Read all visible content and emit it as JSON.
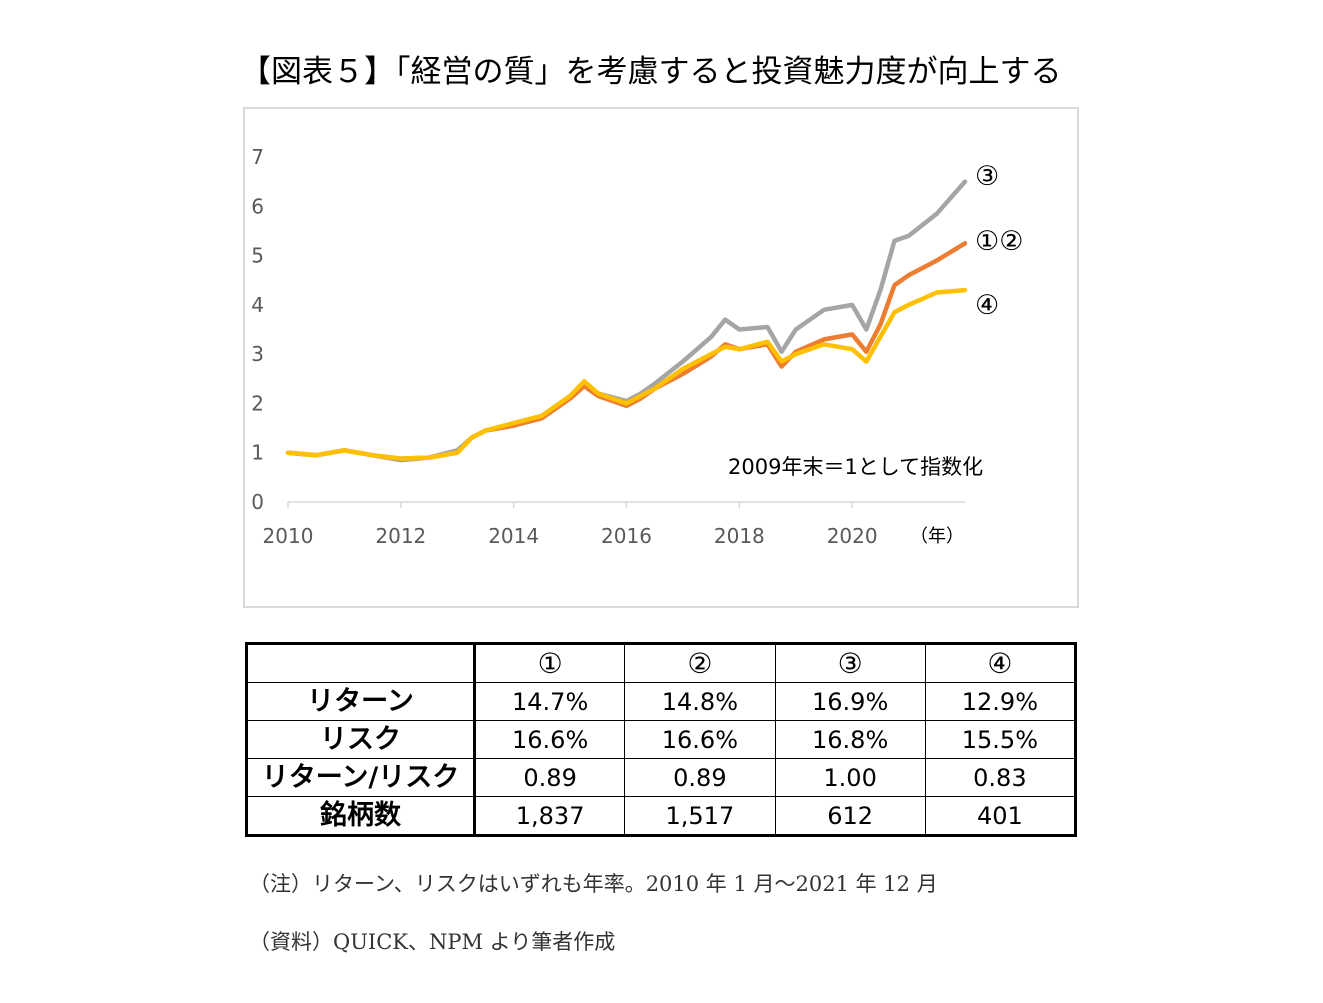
{
  "title": "【図表５】「経営の質」を考慮すると投資魅力度が向上する",
  "chart_data": {
    "type": "line",
    "x_unit_label": "（年）",
    "annotation": "2009年末＝1として指数化",
    "xlim": [
      2010,
      2022
    ],
    "ylim": [
      0,
      7
    ],
    "y_ticks": [
      "0",
      "1",
      "2",
      "3",
      "4",
      "5",
      "6",
      "7"
    ],
    "x_ticks": [
      "2010",
      "2012",
      "2014",
      "2016",
      "2018",
      "2020"
    ],
    "x_tick_values": [
      2010,
      2012,
      2014,
      2016,
      2018,
      2020
    ],
    "x": [
      2010.0,
      2010.5,
      2011.0,
      2011.5,
      2012.0,
      2012.5,
      2013.0,
      2013.25,
      2013.5,
      2014.0,
      2014.5,
      2015.0,
      2015.25,
      2015.5,
      2016.0,
      2016.25,
      2016.5,
      2017.0,
      2017.5,
      2017.75,
      2018.0,
      2018.5,
      2018.75,
      2019.0,
      2019.5,
      2020.0,
      2020.25,
      2020.5,
      2020.75,
      2021.0,
      2021.5,
      2022.0
    ],
    "series": [
      {
        "name": "③",
        "color": "#a5a5a5",
        "values": [
          1.0,
          0.95,
          1.05,
          0.95,
          0.85,
          0.9,
          1.05,
          1.3,
          1.45,
          1.55,
          1.75,
          2.15,
          2.4,
          2.2,
          2.05,
          2.2,
          2.4,
          2.85,
          3.35,
          3.7,
          3.5,
          3.55,
          3.05,
          3.5,
          3.9,
          4.0,
          3.5,
          4.3,
          5.3,
          5.4,
          5.85,
          6.5
        ]
      },
      {
        "name": "①②",
        "color": "#ed7d31",
        "values": [
          1.0,
          0.95,
          1.05,
          0.95,
          0.88,
          0.9,
          1.0,
          1.3,
          1.45,
          1.55,
          1.7,
          2.1,
          2.35,
          2.15,
          1.95,
          2.1,
          2.3,
          2.6,
          2.95,
          3.2,
          3.1,
          3.2,
          2.75,
          3.05,
          3.3,
          3.4,
          3.05,
          3.6,
          4.4,
          4.6,
          4.9,
          5.25
        ]
      },
      {
        "name": "④",
        "color": "#ffc000",
        "values": [
          1.0,
          0.95,
          1.05,
          0.95,
          0.88,
          0.9,
          1.0,
          1.3,
          1.45,
          1.6,
          1.75,
          2.15,
          2.45,
          2.2,
          2.0,
          2.15,
          2.3,
          2.7,
          3.0,
          3.15,
          3.1,
          3.25,
          2.85,
          3.0,
          3.2,
          3.1,
          2.85,
          3.35,
          3.85,
          4.0,
          4.25,
          4.3
        ]
      }
    ],
    "series_labels": [
      "③",
      "①②",
      "④"
    ]
  },
  "table": {
    "headers": [
      "",
      "①",
      "②",
      "③",
      "④"
    ],
    "rows": [
      {
        "label": "リターン",
        "values": [
          "14.7%",
          "14.8%",
          "16.9%",
          "12.9%"
        ]
      },
      {
        "label": "リスク",
        "values": [
          "16.6%",
          "16.6%",
          "16.8%",
          "15.5%"
        ]
      },
      {
        "label": "リターン/リスク",
        "values": [
          "0.89",
          "0.89",
          "1.00",
          "0.83"
        ]
      },
      {
        "label": "銘柄数",
        "values": [
          "1,837",
          "1,517",
          "612",
          "401"
        ]
      }
    ]
  },
  "notes": {
    "note1": "（注）リターン、リスクはいずれも年率。2010 年 1 月～2021 年 12 月",
    "note2": "（資料）QUICK、NPM より筆者作成"
  }
}
